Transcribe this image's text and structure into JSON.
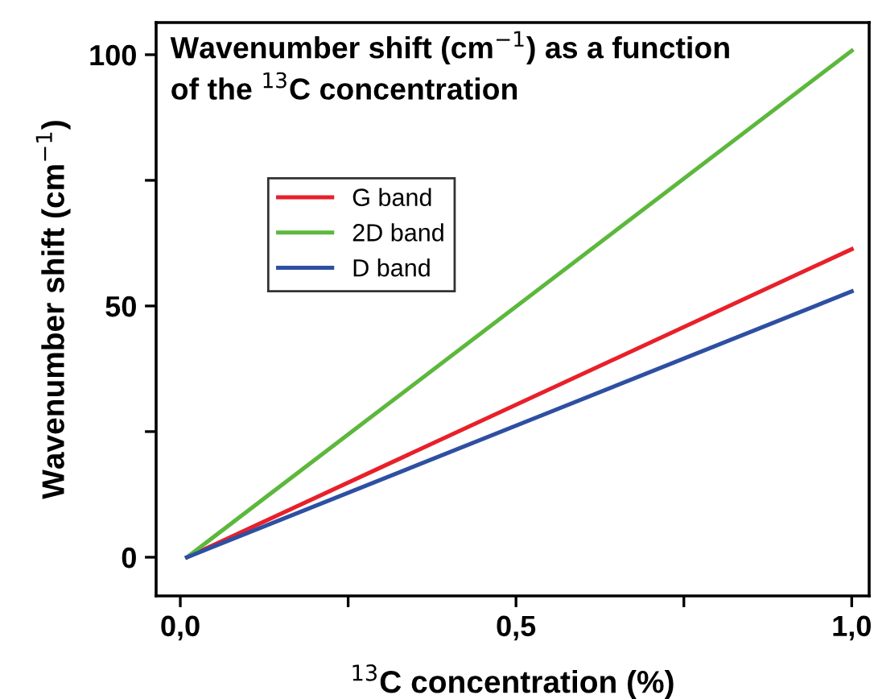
{
  "chart_data": {
    "type": "line",
    "title": "Wavenumber shift (cm$^{−1}$) as a function\nof the $^{13}$C concentration",
    "xlabel": "$^{13}$C concentration (%)",
    "ylabel": "Wavenumber shift (cm$^{−1}$)",
    "x": [
      0.01,
      1.0
    ],
    "series": [
      {
        "name": "G band",
        "color": "#e8202a",
        "values": [
          0,
          61.3
        ]
      },
      {
        "name": "2D band",
        "color": "#5cb83c",
        "values": [
          0,
          100.8
        ]
      },
      {
        "name": "D band",
        "color": "#2e4fa2",
        "values": [
          0,
          52.9
        ]
      }
    ],
    "xlim": [
      -0.036,
      1.026
    ],
    "ylim": [
      -7.7,
      106.4
    ],
    "xticks": [
      {
        "value": 0,
        "label": "0,0"
      },
      {
        "value": 0.25,
        "label": null
      },
      {
        "value": 0.5,
        "label": "0,5"
      },
      {
        "value": 0.75,
        "label": null
      },
      {
        "value": 1,
        "label": "1,0"
      }
    ],
    "yticks": [
      0,
      {
        "value": 25,
        "label": null
      },
      50,
      {
        "value": 75,
        "label": null
      },
      100
    ],
    "legend": "top left",
    "grid": false,
    "marker": "none",
    "line_style": "solid"
  }
}
